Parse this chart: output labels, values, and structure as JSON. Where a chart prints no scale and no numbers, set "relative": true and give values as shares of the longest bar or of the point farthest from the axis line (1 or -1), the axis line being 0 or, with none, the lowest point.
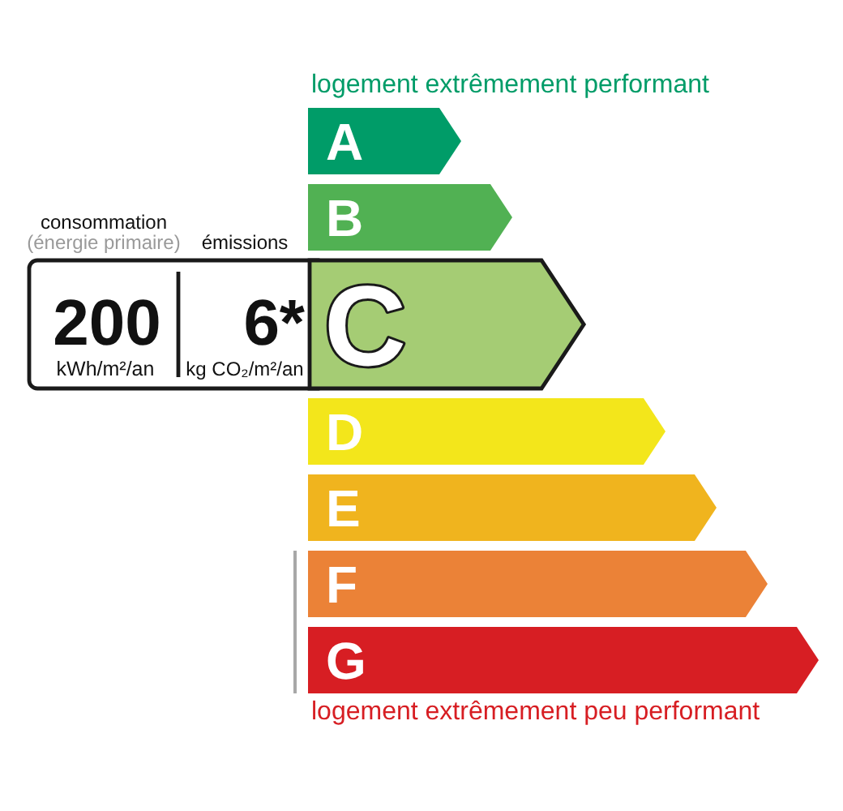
{
  "chart_data": {
    "type": "bar",
    "orientation": "horizontal",
    "relative": true,
    "categories": [
      "A",
      "B",
      "C",
      "D",
      "E",
      "F",
      "G"
    ],
    "values": [
      0.3,
      0.4,
      0.54,
      0.7,
      0.8,
      0.9,
      1
    ],
    "colors": [
      "#009c68",
      "#51b153",
      "#a5cc74",
      "#f3e61b",
      "#f0b41e",
      "#eb8237",
      "#d71e23"
    ],
    "annotations": [
      "logement extrêmement performant",
      "logement extrêmement peu performant",
      "consommation",
      "(énergie primaire)",
      "émissions",
      "200",
      "kWh/m²/an",
      "6*",
      "kg CO₂/m²/an"
    ]
  }
}
